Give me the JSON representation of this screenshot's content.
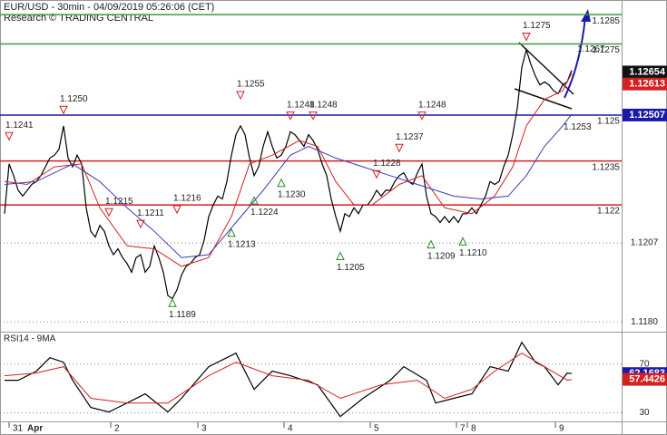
{
  "chart_data": [
    {
      "type": "line",
      "title": "EUR/USD - 30min - 04/09/2019 05:26:06 (CET)",
      "subtitle": "Research © TRADING CENTRAL",
      "xlim": [
        -1,
        136
      ],
      "ylim": [
        1.1177,
        1.129
      ],
      "xticks": [
        {
          "value": 1,
          "label": "31"
        },
        {
          "value": 23.4,
          "label": "2"
        },
        {
          "value": 42.6,
          "label": "3"
        },
        {
          "value": 61.6,
          "label": "4"
        },
        {
          "value": 80.6,
          "label": "5"
        },
        {
          "value": 99.6,
          "label": "7"
        },
        {
          "value": 102,
          "label": "8"
        },
        {
          "value": 121.4,
          "label": "9"
        }
      ],
      "month_label": "Apr",
      "yticks": [
        1.1207,
        {
          "value": 1.118,
          "label": "1.1180"
        }
      ],
      "grid": true,
      "series": [
        {
          "color": "#000000",
          "values": [
            1.1217,
            1.1234,
            1.123,
            1.1225,
            1.1223,
            1.1225,
            1.1227,
            1.1228,
            1.123,
            1.1233,
            1.1236,
            1.1237,
            1.1239,
            1.1247,
            1.1236,
            1.1233,
            1.1237,
            1.1234,
            1.1219,
            1.1211,
            1.1209,
            1.1213,
            1.1211,
            1.1206,
            1.1203,
            1.1205,
            1.1202,
            1.12,
            1.1197,
            1.1202,
            1.1203,
            1.1197,
            1.1199,
            1.1206,
            1.1202,
            1.1197,
            1.1189,
            1.1188,
            1.1191,
            1.1196,
            1.1199,
            1.12,
            1.1202,
            1.1203,
            1.1208,
            1.1216,
            1.122,
            1.1223,
            1.1222,
            1.1228,
            1.1237,
            1.1244,
            1.1247,
            1.1244,
            1.1236,
            1.123,
            1.1233,
            1.124,
            1.1245,
            1.124,
            1.1236,
            1.1237,
            1.124,
            1.1245,
            1.1244,
            1.1242,
            1.124,
            1.1244,
            1.1242,
            1.1239,
            1.1234,
            1.123,
            1.1222,
            1.1216,
            1.1211,
            1.1217,
            1.1216,
            1.1219,
            1.1217,
            1.122,
            1.122,
            1.1222,
            1.1225,
            1.1223,
            1.1225,
            1.1225,
            1.1228,
            1.123,
            1.1231,
            1.1228,
            1.1227,
            1.1231,
            1.1234,
            1.1223,
            1.1217,
            1.1216,
            1.1214,
            1.1216,
            1.1214,
            1.1216,
            1.1214,
            1.1217,
            1.1217,
            1.1219,
            1.1217,
            1.122,
            1.1223,
            1.1228,
            1.1227,
            1.1228,
            1.1233,
            1.1237,
            1.1244,
            1.1253,
            1.1267,
            1.1273,
            1.1268,
            1.1264,
            1.1261,
            1.1262,
            1.1261,
            1.1259,
            1.1258,
            1.1261,
            1.1262,
            1.1266
          ]
        },
        {
          "color": "#d42020",
          "x": [
            0,
            5,
            11,
            17,
            21,
            27,
            33,
            39,
            45,
            50,
            54,
            59,
            65,
            69,
            73,
            77,
            81,
            87,
            92,
            97,
            103,
            108,
            112,
            115,
            119,
            123,
            125
          ],
          "values": [
            1.1228,
            1.1227,
            1.1233,
            1.1234,
            1.1219,
            1.1206,
            1.1205,
            1.1199,
            1.1202,
            1.1216,
            1.1234,
            1.1237,
            1.1242,
            1.124,
            1.1228,
            1.122,
            1.122,
            1.1227,
            1.123,
            1.1219,
            1.1217,
            1.1223,
            1.1233,
            1.1247,
            1.1256,
            1.1259,
            1.1265
          ]
        },
        {
          "color": "#3c3cb4",
          "x": [
            0,
            7,
            15,
            21,
            27,
            33,
            39,
            45,
            51,
            57,
            63,
            67,
            73,
            79,
            85,
            91,
            99,
            105,
            111,
            115,
            119,
            123,
            125
          ],
          "values": [
            1.1227,
            1.1228,
            1.1234,
            1.1228,
            1.1219,
            1.1211,
            1.1202,
            1.1203,
            1.1214,
            1.1225,
            1.1237,
            1.124,
            1.1236,
            1.1233,
            1.123,
            1.1227,
            1.1223,
            1.1222,
            1.1223,
            1.123,
            1.124,
            1.1247,
            1.1251
          ]
        }
      ],
      "levels": [
        {
          "value": 1.1285,
          "color": "#3c9c3c"
        },
        {
          "value": 1.1275,
          "color": "#3c9c3c"
        },
        {
          "value": 1.12507,
          "label": "1.125",
          "color": "#1a1aaa"
        },
        {
          "value": 1.1235,
          "color": "#d42020"
        },
        {
          "value": 1.122,
          "color": "#d42020"
        }
      ],
      "price_boxes": [
        {
          "value": 1.12654,
          "color": "#111111"
        },
        {
          "value": 1.12613,
          "color": "#d42020"
        },
        {
          "value": 1.12507,
          "color": "#1a1aaa"
        }
      ],
      "pivots": {
        "x": [
          1,
          13,
          23,
          30,
          37,
          38,
          50,
          52,
          55,
          61,
          63,
          68,
          74,
          82,
          87,
          92,
          94,
          101,
          115,
          127,
          124
        ],
        "values": [
          1.1241,
          1.125,
          1.1215,
          1.1211,
          1.1189,
          1.1216,
          1.1213,
          1.1255,
          1.1224,
          1.123,
          1.1248,
          1.1248,
          1.1205,
          1.1228,
          1.1237,
          1.1248,
          1.1209,
          1.121,
          1.1275,
          1.1267,
          1.1253
        ],
        "value_labels": [
          "1.1241",
          "1.1250",
          "1.1215",
          "1.1211",
          "1.1189",
          "1.1216",
          "1.1213",
          "1.1255",
          "1.1224",
          "1.1230",
          "1.1248",
          "1.1248",
          "1.1205",
          "1.1228",
          "1.1237",
          "1.1248",
          "1.1209",
          "1.1210",
          "1.1275",
          "1.1267",
          "1.1253"
        ],
        "direction": [
          "down",
          "down",
          "down",
          "down",
          "up",
          "down",
          "up",
          "down",
          "up",
          "up",
          "down",
          "down",
          "up",
          "down",
          "down",
          "down",
          "up",
          "up",
          "down",
          "down-text",
          "up-text"
        ]
      }
    },
    {
      "type": "line",
      "title": "RSI14 - 9MA",
      "xlim": [
        -1,
        136
      ],
      "ylim": [
        23,
        95
      ],
      "yticks": [
        70,
        30
      ],
      "series": [
        {
          "color": "#000000",
          "x": [
            0,
            3,
            7,
            10,
            13,
            15,
            19,
            23,
            27,
            31,
            36,
            39,
            45,
            51,
            55,
            59,
            63,
            69,
            74,
            79,
            85,
            88,
            93,
            95,
            99,
            103,
            107,
            111,
            114,
            117,
            119,
            122,
            124,
            125
          ],
          "values": [
            56.7,
            56.7,
            64.1,
            75.2,
            71.5,
            56.7,
            34.4,
            30.7,
            38.1,
            45.6,
            30.7,
            41.9,
            67.8,
            78.9,
            49.3,
            64.1,
            60.4,
            53.0,
            27.0,
            41.9,
            56.7,
            67.8,
            56.7,
            38.1,
            41.9,
            45.6,
            67.8,
            64.1,
            87.8,
            71.5,
            67.8,
            53.0,
            62.6,
            62.2
          ]
        },
        {
          "color": "#d42020",
          "x": [
            0,
            7,
            13,
            19,
            27,
            36,
            45,
            51,
            59,
            67,
            74,
            83,
            91,
            97,
            103,
            108,
            114,
            119,
            124,
            125
          ],
          "values": [
            60.4,
            62.6,
            67.8,
            41.9,
            38.1,
            38.1,
            60.4,
            71.5,
            60.4,
            56.7,
            41.9,
            53.0,
            56.7,
            41.9,
            49.3,
            64.1,
            78.9,
            67.8,
            56.7,
            57.4
          ]
        }
      ],
      "value_boxes": [
        {
          "value": 62.1683,
          "color": "#1a1aaa"
        },
        {
          "value": 57.4426,
          "color": "#d42020"
        }
      ]
    }
  ]
}
